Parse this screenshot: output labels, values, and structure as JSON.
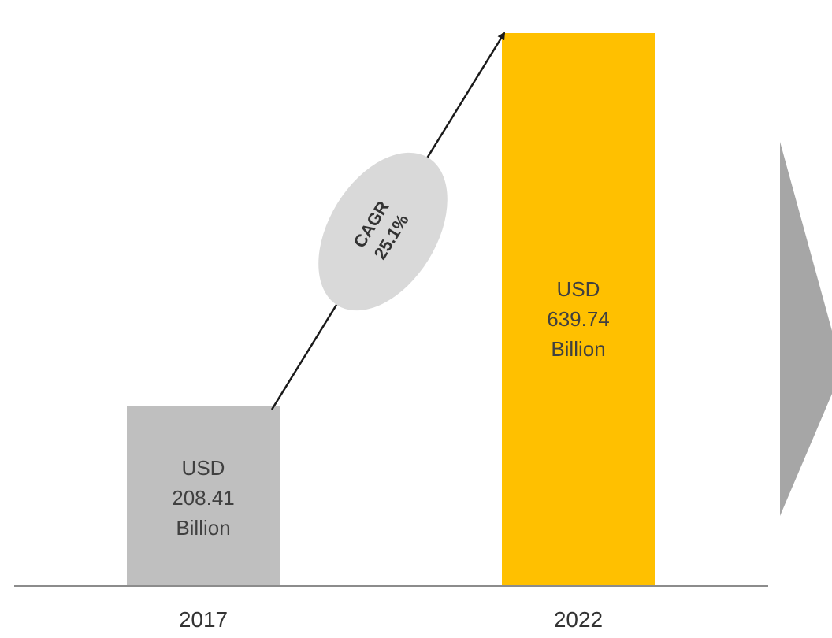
{
  "chart_data": {
    "type": "bar",
    "categories": [
      "2017",
      "2022"
    ],
    "values": [
      208.41,
      639.74
    ],
    "data_labels": [
      [
        "USD",
        "208.41",
        "Billion"
      ],
      [
        "USD",
        "639.74",
        "Billion"
      ]
    ],
    "annotation": [
      "CAGR",
      "25.1%"
    ],
    "title": "",
    "xlabel": "",
    "ylabel": "",
    "ylim": [
      0,
      639.74
    ],
    "grid": false,
    "legend": "none"
  },
  "colors": {
    "bar_2017": "#bfbfbf",
    "bar_2022": "#ffc000",
    "axis": "#8c8c8c",
    "ellipse": "#d9d9d9",
    "arrow": "#1a1a1a",
    "chevron": "#a6a6a6",
    "text": "#404040"
  }
}
